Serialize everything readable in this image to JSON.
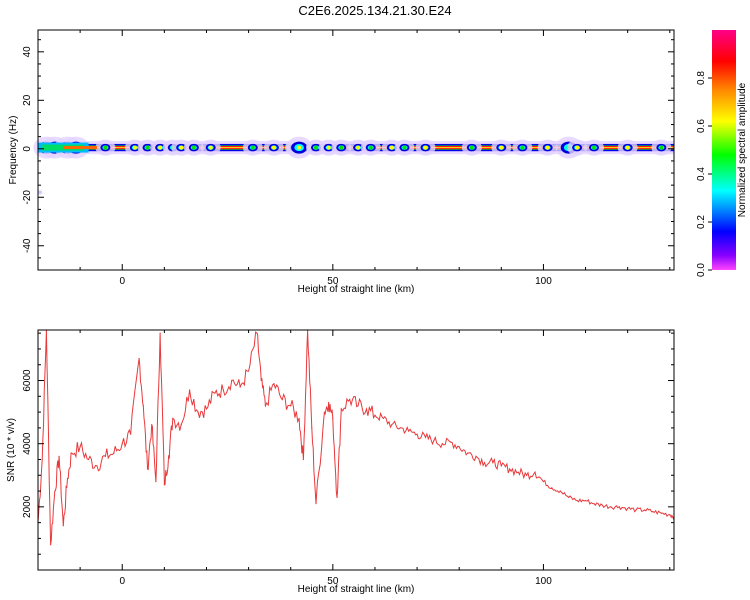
{
  "title": "C2E6.2025.134.21.30.E24",
  "chart_data": [
    {
      "type": "heatmap",
      "xlabel": "Height of straight line (km)",
      "ylabel": "Frequency (Hz)",
      "xlim": [
        -20,
        131
      ],
      "ylim": [
        -50,
        49
      ],
      "xticks": [
        "0",
        "50",
        "100"
      ],
      "yticks": [
        "40",
        "20",
        "0",
        "-20",
        "-40"
      ],
      "band_center_hz": 0.5,
      "band_halfwidth_hz": 1.5,
      "colorbar": {
        "label": "Normalized spectral amplitude",
        "range": [
          0,
          1
        ],
        "ticks": [
          "0.0",
          "0.2",
          "0.4",
          "0.6",
          "0.8"
        ],
        "colors": [
          "#ff44ff",
          "#8800ff",
          "#0000ff",
          "#00ffff",
          "#00ff00",
          "#ffff00",
          "#ff8800",
          "#ff0000",
          "#ff0088"
        ]
      }
    },
    {
      "type": "line",
      "xlabel": "Height of straight line (km)",
      "ylabel": "SNR (10 * v/v)",
      "xlim": [
        -20,
        131
      ],
      "ylim": [
        0,
        7600
      ],
      "xticks": [
        "0",
        "50",
        "100"
      ],
      "yticks": [
        "6000",
        "4000",
        "2000"
      ],
      "color": "#e8393b",
      "x": [
        -20,
        -19,
        -18,
        -17,
        -16,
        -15,
        -14,
        -13,
        -12,
        -10,
        -8,
        -6,
        -4,
        -2,
        0,
        2,
        4,
        5,
        6,
        7,
        8,
        9,
        10,
        11,
        12,
        14,
        16,
        18,
        20,
        22,
        24,
        26,
        28,
        30,
        32,
        33,
        34,
        36,
        38,
        40,
        42,
        43,
        44,
        45,
        46,
        48,
        49,
        50,
        51,
        52,
        54,
        56,
        58,
        60,
        62,
        64,
        66,
        68,
        70,
        72,
        74,
        76,
        78,
        80,
        82,
        84,
        86,
        88,
        90,
        92,
        94,
        96,
        98,
        100,
        102,
        104,
        106,
        108,
        110,
        112,
        114,
        116,
        118,
        120,
        122,
        124,
        126,
        128,
        130,
        131
      ],
      "y": [
        1500,
        3500,
        7600,
        800,
        2500,
        3600,
        1400,
        2900,
        3700,
        3900,
        3500,
        3300,
        3600,
        3700,
        4000,
        4300,
        6700,
        5200,
        3200,
        4600,
        2800,
        7500,
        2700,
        3600,
        4800,
        4600,
        5700,
        5000,
        5100,
        5600,
        5700,
        6000,
        5800,
        6300,
        7500,
        6000,
        5200,
        5900,
        5400,
        5200,
        4800,
        3500,
        7600,
        4500,
        2100,
        5000,
        5300,
        4800,
        2300,
        5100,
        5400,
        5200,
        5100,
        4900,
        4800,
        4600,
        4500,
        4400,
        4300,
        4200,
        4100,
        4000,
        4050,
        3900,
        3700,
        3600,
        3400,
        3400,
        3300,
        3200,
        3100,
        3000,
        3100,
        2800,
        2600,
        2500,
        2300,
        2200,
        2200,
        2100,
        2050,
        2000,
        2000,
        1950,
        1900,
        1900,
        1850,
        1800,
        1750,
        1700
      ]
    }
  ]
}
